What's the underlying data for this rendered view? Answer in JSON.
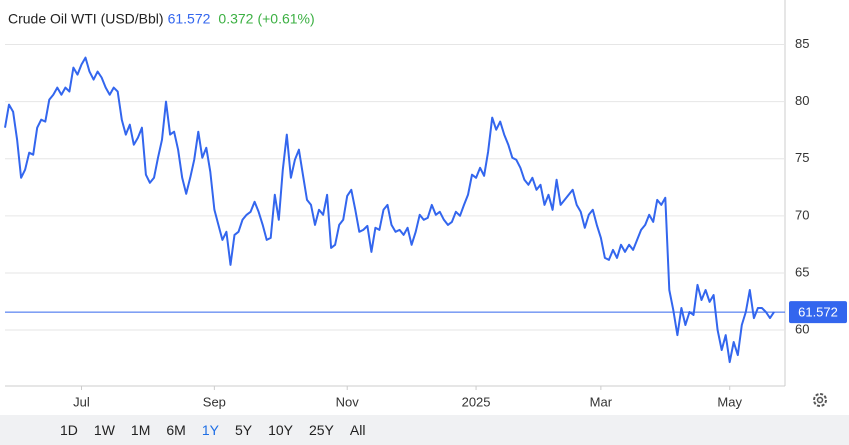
{
  "chart_data": {
    "type": "line",
    "title": "Crude Oil WTI (USD/Bbl)",
    "last_price": 61.572,
    "change": 0.372,
    "change_percent": "(+0.61%)",
    "color": "#3366ee",
    "ylim": [
      55.1,
      88.9
    ],
    "yticks": [
      60,
      65,
      70,
      75,
      80,
      85
    ],
    "grid": true,
    "xticks": [
      {
        "value": 19,
        "label": "Jul"
      },
      {
        "value": 52,
        "label": "Sep"
      },
      {
        "value": 85,
        "label": "Nov"
      },
      {
        "value": 117,
        "label": "2025"
      },
      {
        "value": 148,
        "label": "Mar"
      },
      {
        "value": 180,
        "label": "May"
      }
    ],
    "values": [
      77.72,
      79.74,
      79.12,
      76.67,
      73.33,
      74.04,
      75.53,
      75.35,
      77.72,
      78.42,
      78.25,
      80.18,
      80.61,
      81.23,
      80.61,
      81.23,
      80.88,
      82.98,
      82.37,
      83.25,
      83.86,
      82.63,
      81.93,
      82.63,
      82.11,
      81.23,
      80.61,
      81.23,
      80.88,
      78.42,
      77.11,
      77.98,
      76.23,
      76.84,
      77.72,
      73.6,
      72.89,
      73.33,
      75.09,
      76.67,
      80.0,
      77.11,
      77.37,
      75.79,
      73.33,
      71.93,
      73.33,
      74.91,
      77.37,
      75.09,
      75.96,
      73.86,
      70.53,
      69.21,
      67.89,
      68.6,
      65.7,
      68.33,
      68.6,
      69.65,
      70.09,
      70.35,
      71.23,
      70.35,
      69.21,
      67.89,
      68.07,
      71.84,
      69.65,
      74.04,
      77.11,
      73.33,
      74.91,
      75.79,
      73.6,
      71.4,
      70.96,
      69.21,
      70.53,
      70.09,
      71.84,
      67.19,
      67.46,
      69.21,
      69.65,
      71.75,
      72.28,
      70.53,
      68.6,
      68.77,
      69.12,
      66.84,
      68.95,
      68.77,
      70.53,
      70.96,
      69.21,
      68.6,
      68.77,
      68.33,
      68.95,
      67.46,
      68.6,
      70.09,
      69.65,
      69.82,
      70.96,
      70.09,
      70.35,
      69.65,
      69.21,
      69.47,
      70.35,
      70.0,
      70.96,
      71.84,
      73.6,
      73.33,
      74.21,
      73.51,
      75.61,
      78.6,
      77.54,
      78.25,
      77.11,
      76.23,
      75.09,
      74.91,
      74.21,
      73.16,
      72.72,
      73.33,
      72.28,
      72.72,
      70.96,
      71.84,
      70.53,
      73.16,
      70.96,
      71.4,
      71.84,
      72.28,
      70.96,
      70.35,
      68.95,
      70.09,
      70.53,
      69.21,
      68.07,
      66.32,
      66.14,
      67.02,
      66.32,
      67.46,
      66.84,
      67.46,
      67.02,
      67.89,
      68.77,
      69.21,
      70.09,
      69.47,
      71.4,
      70.96,
      71.58,
      63.51,
      61.75,
      59.56,
      61.93,
      60.44,
      61.58,
      61.32,
      63.95,
      62.63,
      63.51,
      62.46,
      63.07,
      60.0,
      58.25,
      59.56,
      57.19,
      58.95,
      57.81,
      60.44,
      61.58,
      63.51,
      61.05,
      61.93,
      61.93,
      61.58,
      61.05,
      61.572
    ]
  },
  "range_buttons": [
    "1D",
    "1W",
    "1M",
    "6M",
    "1Y",
    "5Y",
    "10Y",
    "25Y",
    "All"
  ],
  "active_range": "1Y"
}
